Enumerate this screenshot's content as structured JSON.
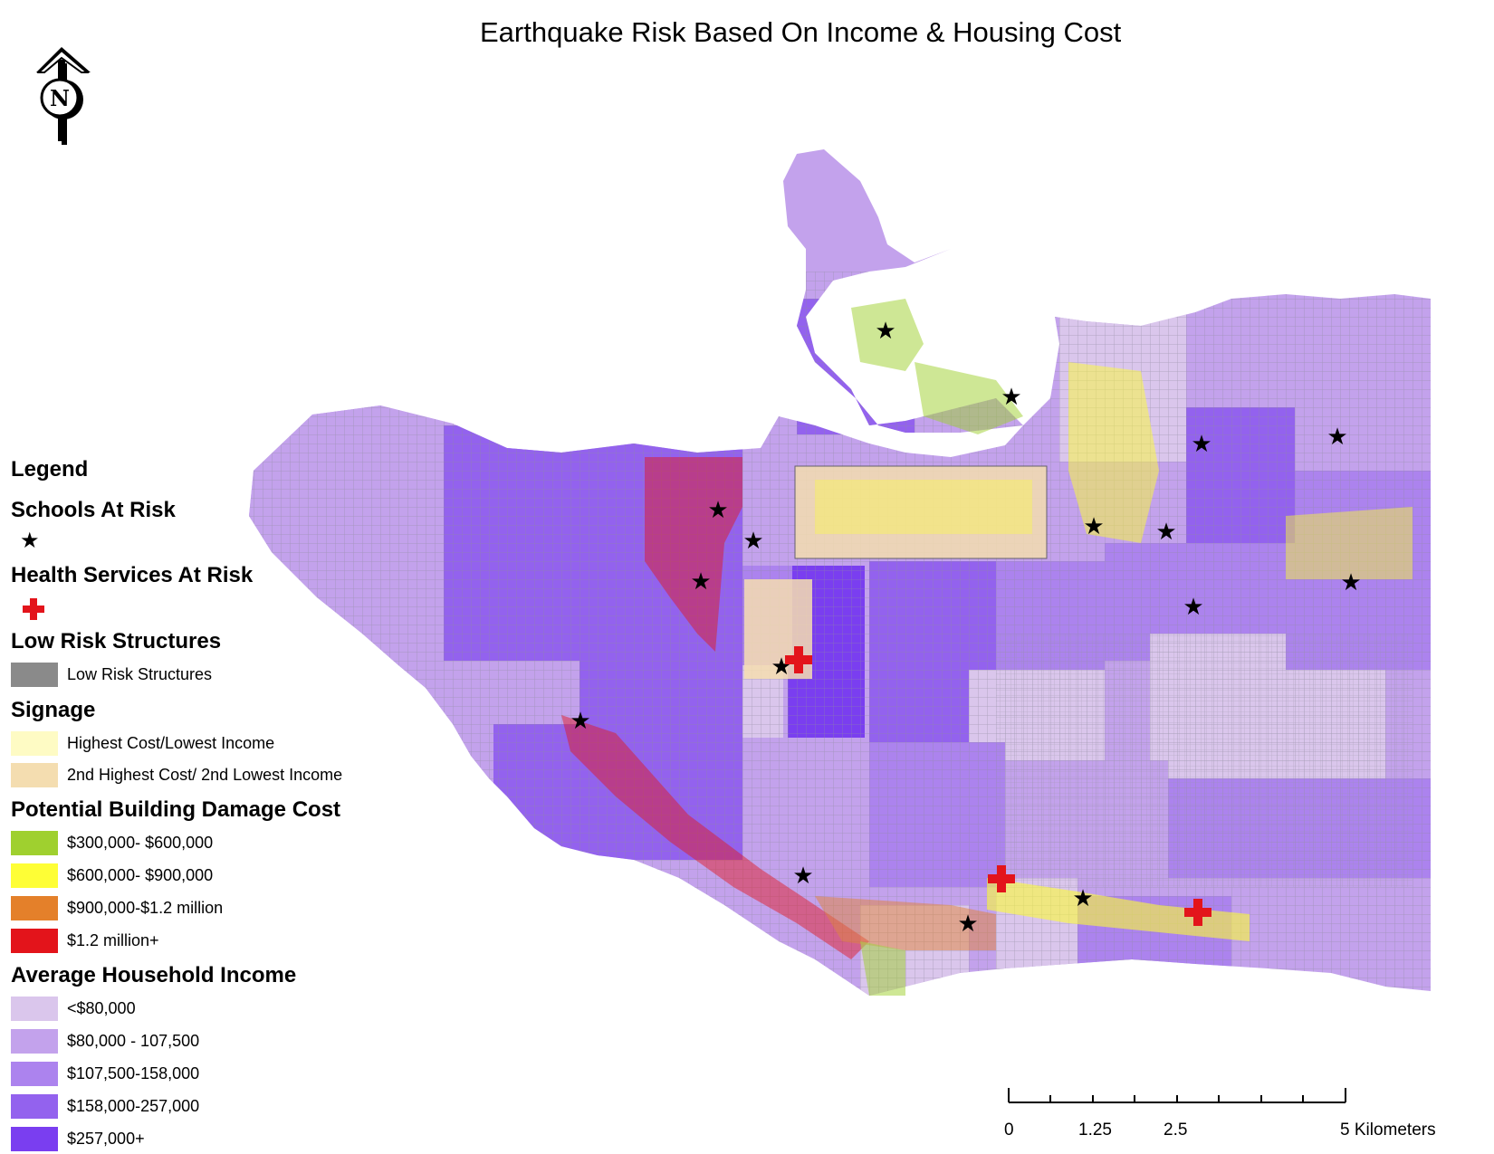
{
  "title": "Earthquake Risk Based On Income & Housing Cost",
  "north_arrow": {
    "label": "N",
    "icon": "north-arrow-icon"
  },
  "legend": {
    "heading": "Legend",
    "sections": [
      {
        "title": "Schools At Risk",
        "items": [
          {
            "label": "",
            "symbol": "star",
            "color": "#000000"
          }
        ]
      },
      {
        "title": "Health Services At Risk",
        "items": [
          {
            "label": "",
            "symbol": "cross",
            "color": "#e3141b"
          }
        ]
      },
      {
        "title": "Low Risk Structures",
        "items": [
          {
            "label": "Low Risk Structures",
            "color": "#8a8a8a"
          }
        ]
      },
      {
        "title": "Signage",
        "items": [
          {
            "label": "Highest Cost/Lowest Income",
            "color": "#fefbc4"
          },
          {
            "label": "2nd Highest Cost/ 2nd Lowest Income",
            "color": "#f4ddb0"
          }
        ]
      },
      {
        "title": "Potential Building Damage Cost",
        "items": [
          {
            "label": "$300,000- $600,000",
            "color": "#9fd02f"
          },
          {
            "label": "$600,000- $900,000",
            "color": "#fefe36"
          },
          {
            "label": "$900,000-$1.2 million",
            "color": "#e4802a"
          },
          {
            "label": "$1.2 million+",
            "color": "#e3141b"
          }
        ]
      },
      {
        "title": "Average Household Income",
        "items": [
          {
            "label": "<$80,000",
            "color": "#dac6ec"
          },
          {
            "label": "$80,000 - 107,500",
            "color": "#c3a2ec"
          },
          {
            "label": "$107,500-158,000",
            "color": "#ac83ee"
          },
          {
            "label": "$158,000-257,000",
            "color": "#9362ee"
          },
          {
            "label": "$257,000+",
            "color": "#7a3ef0"
          }
        ]
      }
    ]
  },
  "scale_bar": {
    "labels": [
      "0",
      "1.25",
      "2.5",
      "5 Kilometers"
    ]
  }
}
